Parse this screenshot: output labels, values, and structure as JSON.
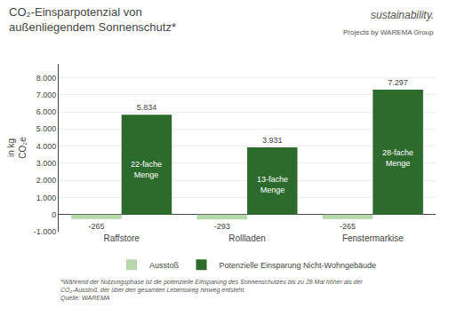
{
  "chart_data": {
    "type": "bar",
    "title": "CO₂-Einsparpotenzial von\naußenliegendem Sonnenschutz*",
    "ylabel": "in kg\nCO₂e",
    "categories": [
      "Raffstore",
      "Rollladen",
      "Fenstermarkise"
    ],
    "series": [
      {
        "name": "Ausstoß",
        "color": "#b5d8a8",
        "values": [
          -265,
          -293,
          -265
        ],
        "value_labels": [
          "-265",
          "-293",
          "-265"
        ]
      },
      {
        "name": "Potenzielle Einsparung Nicht-Wohngebäude",
        "color": "#2d6b2d",
        "values": [
          5834,
          3931,
          7297
        ],
        "value_labels": [
          "5.834",
          "3.931",
          "7.297"
        ]
      }
    ],
    "annotations": [
      {
        "text": "22-fache\nMenge",
        "category": "Raffstore",
        "series": "Potenzielle Einsparung Nicht-Wohngebäude"
      },
      {
        "text": "13-fache\nMenge",
        "category": "Rollladen",
        "series": "Potenzielle Einsparung Nicht-Wohngebäude"
      },
      {
        "text": "28-fache\nMenge",
        "category": "Fenstermarkise",
        "series": "Potenzielle Einsparung Nicht-Wohngebäude"
      }
    ],
    "notes": [
      "sustainability.",
      "Projects by WAREMA Group"
    ],
    "footnote": [
      "*Während der Nutzungsphase ist die potenzielle Einsparung des Sonnenschutzes bis zu 28 Mal höher als der CO₂-Ausstoß, der über den gesamten Lebensweg hinweg entsteht.",
      "Quelle: WAREMA"
    ],
    "ylim": [
      -1000,
      8800
    ],
    "yticks": [
      {
        "value": -1000,
        "label": "-1.000"
      },
      0,
      {
        "value": 1000,
        "label": "1.000"
      },
      {
        "value": 2000,
        "label": "2.000"
      },
      {
        "value": 3000,
        "label": "3.000"
      },
      {
        "value": 4000,
        "label": "4.000"
      },
      {
        "value": 5000,
        "label": "5.000"
      },
      {
        "value": 6000,
        "label": "6.000"
      },
      {
        "value": 7000,
        "label": "7.000"
      },
      {
        "value": 8000,
        "label": "8.000"
      }
    ],
    "grid": true,
    "legend": "bottom",
    "data_labels": true
  }
}
